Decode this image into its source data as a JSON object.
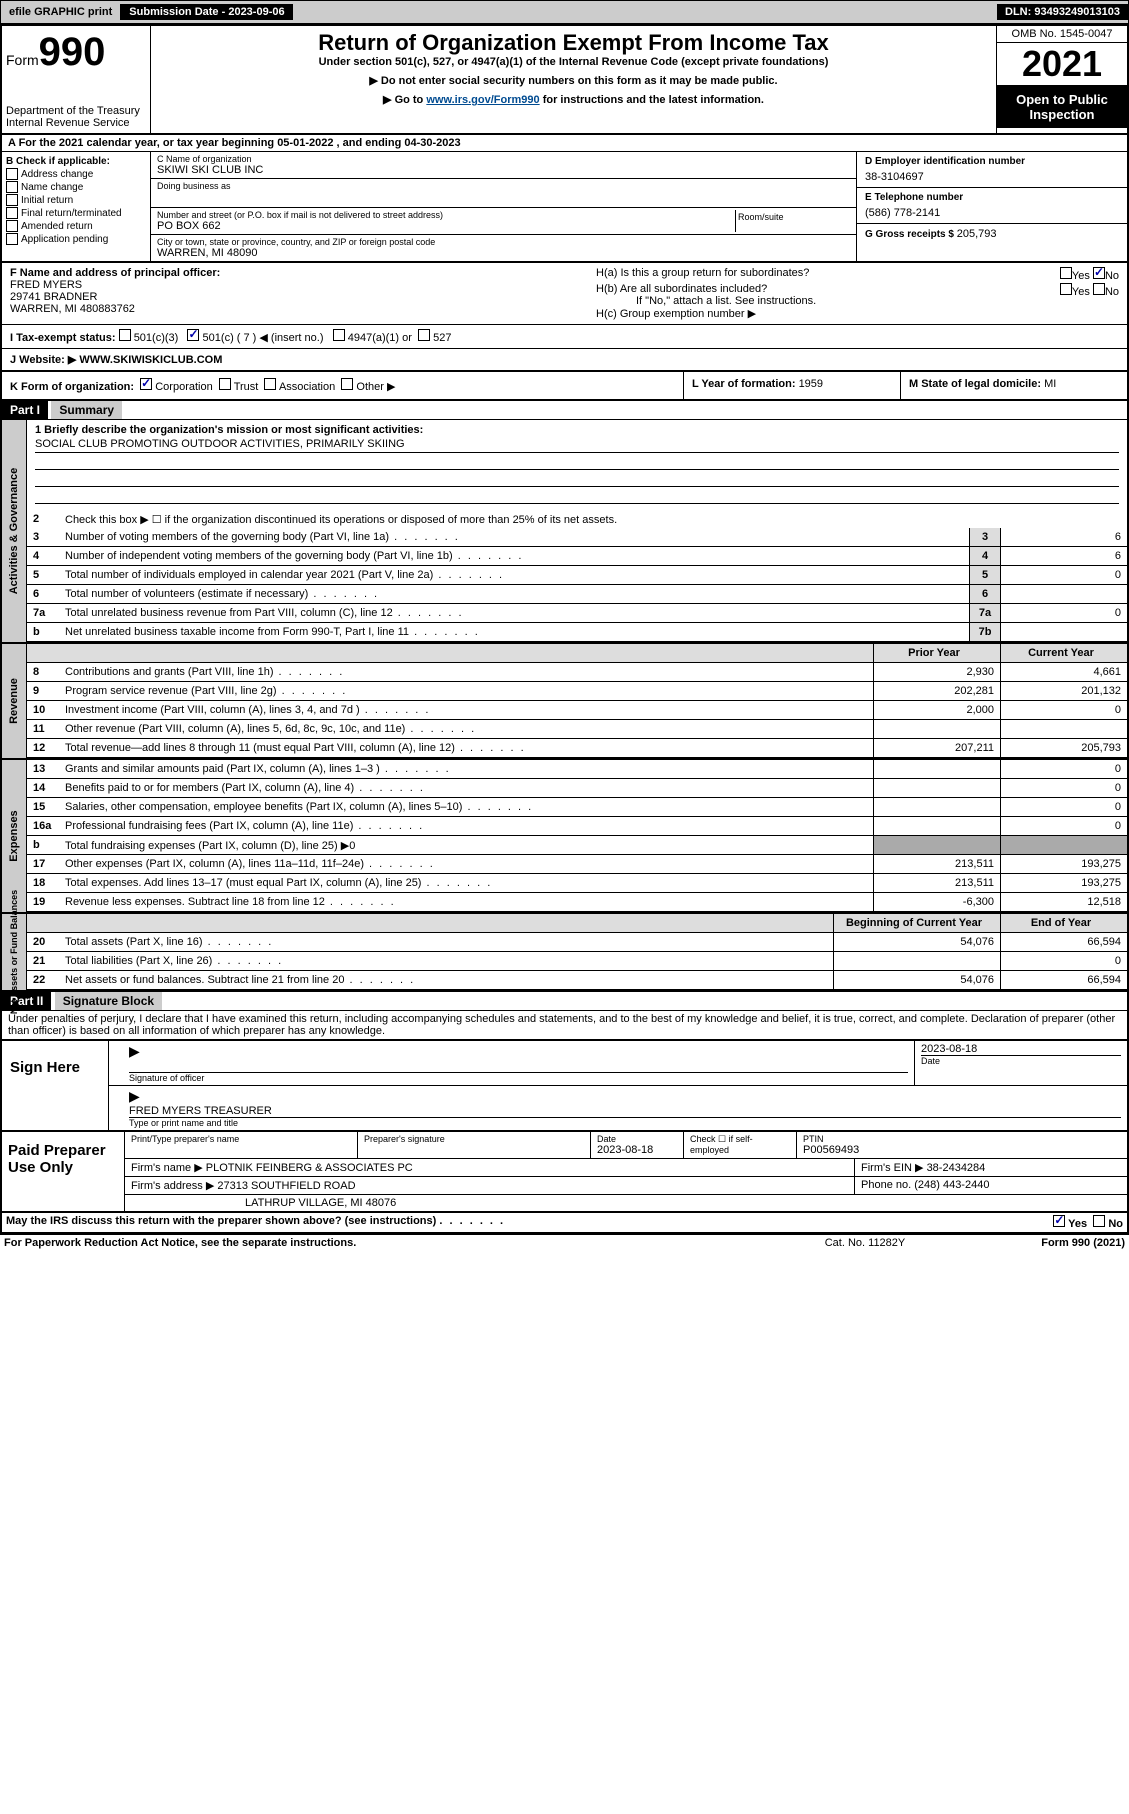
{
  "topbar": {
    "efile": "efile GRAPHIC print",
    "subdate_label": "Submission Date - ",
    "subdate": "2023-09-06",
    "dln_label": "DLN: ",
    "dln": "93493249013103"
  },
  "header": {
    "form_label": "Form",
    "form_num": "990",
    "dept": "Department of the Treasury",
    "irs": "Internal Revenue Service",
    "title": "Return of Organization Exempt From Income Tax",
    "sub1": "Under section 501(c), 527, or 4947(a)(1) of the Internal Revenue Code (except private foundations)",
    "sub2": "▶ Do not enter social security numbers on this form as it may be made public.",
    "sub3_pre": "▶ Go to ",
    "sub3_link": "www.irs.gov/Form990",
    "sub3_post": " for instructions and the latest information.",
    "omb": "OMB No. 1545-0047",
    "year": "2021",
    "inspection": "Open to Public Inspection"
  },
  "rowA": "A For the 2021 calendar year, or tax year beginning 05-01-2022   , and ending 04-30-2023",
  "colB": {
    "label": "B Check if applicable:",
    "items": [
      "Address change",
      "Name change",
      "Initial return",
      "Final return/terminated",
      "Amended return",
      "Application pending"
    ]
  },
  "colC": {
    "name_lbl": "C Name of organization",
    "name": "SKIWI SKI CLUB INC",
    "dba_lbl": "Doing business as",
    "dba": "",
    "addr_lbl": "Number and street (or P.O. box if mail is not delivered to street address)",
    "room_lbl": "Room/suite",
    "addr": "PO BOX 662",
    "city_lbl": "City or town, state or province, country, and ZIP or foreign postal code",
    "city": "WARREN, MI  48090"
  },
  "colDE": {
    "d_lbl": "D Employer identification number",
    "d_val": "38-3104697",
    "e_lbl": "E Telephone number",
    "e_val": "(586) 778-2141",
    "g_lbl": "G Gross receipts $ ",
    "g_val": "205,793"
  },
  "f_block": {
    "f_lbl": "F Name and address of principal officer:",
    "f_name": "FRED MYERS",
    "f_addr1": "29741 BRADNER",
    "f_addr2": "WARREN, MI  480883762"
  },
  "h_block": {
    "ha": "H(a)  Is this a group return for subordinates?",
    "hb": "H(b)  Are all subordinates included?",
    "hb_note": "If \"No,\" attach a list. See instructions.",
    "hc": "H(c)  Group exemption number ▶"
  },
  "status": {
    "i_lbl": "I   Tax-exempt status:",
    "opt1": "501(c)(3)",
    "opt2": "501(c) ( 7 ) ◀ (insert no.)",
    "opt3": "4947(a)(1) or",
    "opt4": "527"
  },
  "website": {
    "j_lbl": "J   Website: ▶ ",
    "url": "WWW.SKIWISKICLUB.COM"
  },
  "k_org": {
    "k_lbl": "K Form of organization:",
    "opts": [
      "Corporation",
      "Trust",
      "Association",
      "Other ▶"
    ],
    "l_lbl": "L Year of formation: ",
    "l_val": "1959",
    "m_lbl": "M State of legal domicile: ",
    "m_val": "MI"
  },
  "part1": {
    "header": "Part I",
    "title": "Summary",
    "mission_lbl": "1   Briefly describe the organization's mission or most significant activities:",
    "mission": "SOCIAL CLUB PROMOTING OUTDOOR ACTIVITIES, PRIMARILY SKIING",
    "line2": "Check this box ▶ ☐  if the organization discontinued its operations or disposed of more than 25% of its net assets.",
    "tabs": {
      "gov": "Activities & Governance",
      "rev": "Revenue",
      "exp": "Expenses",
      "net": "Net Assets or Fund Balances"
    },
    "col_prior": "Prior Year",
    "col_current": "Current Year",
    "col_begin": "Beginning of Current Year",
    "col_end": "End of Year"
  },
  "lines_gov": [
    {
      "n": "3",
      "t": "Number of voting members of the governing body (Part VI, line 1a)",
      "box": "3",
      "v": "6"
    },
    {
      "n": "4",
      "t": "Number of independent voting members of the governing body (Part VI, line 1b)",
      "box": "4",
      "v": "6"
    },
    {
      "n": "5",
      "t": "Total number of individuals employed in calendar year 2021 (Part V, line 2a)",
      "box": "5",
      "v": "0"
    },
    {
      "n": "6",
      "t": "Total number of volunteers (estimate if necessary)",
      "box": "6",
      "v": ""
    },
    {
      "n": "7a",
      "t": "Total unrelated business revenue from Part VIII, column (C), line 12",
      "box": "7a",
      "v": "0"
    },
    {
      "n": "b",
      "t": "Net unrelated business taxable income from Form 990-T, Part I, line 11",
      "box": "7b",
      "v": ""
    }
  ],
  "lines_rev": [
    {
      "n": "8",
      "t": "Contributions and grants (Part VIII, line 1h)",
      "p": "2,930",
      "c": "4,661"
    },
    {
      "n": "9",
      "t": "Program service revenue (Part VIII, line 2g)",
      "p": "202,281",
      "c": "201,132"
    },
    {
      "n": "10",
      "t": "Investment income (Part VIII, column (A), lines 3, 4, and 7d )",
      "p": "2,000",
      "c": "0"
    },
    {
      "n": "11",
      "t": "Other revenue (Part VIII, column (A), lines 5, 6d, 8c, 9c, 10c, and 11e)",
      "p": "",
      "c": ""
    },
    {
      "n": "12",
      "t": "Total revenue—add lines 8 through 11 (must equal Part VIII, column (A), line 12)",
      "p": "207,211",
      "c": "205,793"
    }
  ],
  "lines_exp": [
    {
      "n": "13",
      "t": "Grants and similar amounts paid (Part IX, column (A), lines 1–3 )",
      "p": "",
      "c": "0"
    },
    {
      "n": "14",
      "t": "Benefits paid to or for members (Part IX, column (A), line 4)",
      "p": "",
      "c": "0"
    },
    {
      "n": "15",
      "t": "Salaries, other compensation, employee benefits (Part IX, column (A), lines 5–10)",
      "p": "",
      "c": "0"
    },
    {
      "n": "16a",
      "t": "Professional fundraising fees (Part IX, column (A), line 11e)",
      "p": "",
      "c": "0"
    },
    {
      "n": "b",
      "t": "Total fundraising expenses (Part IX, column (D), line 25) ▶0",
      "p": null,
      "c": null
    },
    {
      "n": "17",
      "t": "Other expenses (Part IX, column (A), lines 11a–11d, 11f–24e)",
      "p": "213,511",
      "c": "193,275"
    },
    {
      "n": "18",
      "t": "Total expenses. Add lines 13–17 (must equal Part IX, column (A), line 25)",
      "p": "213,511",
      "c": "193,275"
    },
    {
      "n": "19",
      "t": "Revenue less expenses. Subtract line 18 from line 12",
      "p": "-6,300",
      "c": "12,518"
    }
  ],
  "lines_net": [
    {
      "n": "20",
      "t": "Total assets (Part X, line 16)",
      "p": "54,076",
      "c": "66,594"
    },
    {
      "n": "21",
      "t": "Total liabilities (Part X, line 26)",
      "p": "",
      "c": "0"
    },
    {
      "n": "22",
      "t": "Net assets or fund balances. Subtract line 21 from line 20",
      "p": "54,076",
      "c": "66,594"
    }
  ],
  "part2": {
    "header": "Part II",
    "title": "Signature Block",
    "declaration": "Under penalties of perjury, I declare that I have examined this return, including accompanying schedules and statements, and to the best of my knowledge and belief, it is true, correct, and complete. Declaration of preparer (other than officer) is based on all information of which preparer has any knowledge."
  },
  "sign": {
    "label": "Sign Here",
    "sig_lbl": "Signature of officer",
    "date_lbl": "Date",
    "date": "2023-08-18",
    "name_lbl": "Type or print name and title",
    "name": "FRED MYERS  TREASURER"
  },
  "prep": {
    "label": "Paid Preparer Use Only",
    "h1": "Print/Type preparer's name",
    "h2": "Preparer's signature",
    "h3": "Date",
    "h3v": "2023-08-18",
    "h4": "Check ☐ if self-employed",
    "h5": "PTIN",
    "h5v": "P00569493",
    "firm_lbl": "Firm's name    ▶ ",
    "firm": "PLOTNIK FEINBERG & ASSOCIATES PC",
    "ein_lbl": "Firm's EIN ▶ ",
    "ein": "38-2434284",
    "addr_lbl": "Firm's address ▶ ",
    "addr1": "27313 SOUTHFIELD ROAD",
    "addr2": "LATHRUP VILLAGE, MI  48076",
    "phone_lbl": "Phone no. ",
    "phone": "(248) 443-2440"
  },
  "footer": {
    "may": "May the IRS discuss this return with the preparer shown above? (see instructions)",
    "paperwork": "For Paperwork Reduction Act Notice, see the separate instructions.",
    "cat": "Cat. No. 11282Y",
    "form": "Form 990 (2021)",
    "yes": "Yes",
    "no": "No"
  }
}
